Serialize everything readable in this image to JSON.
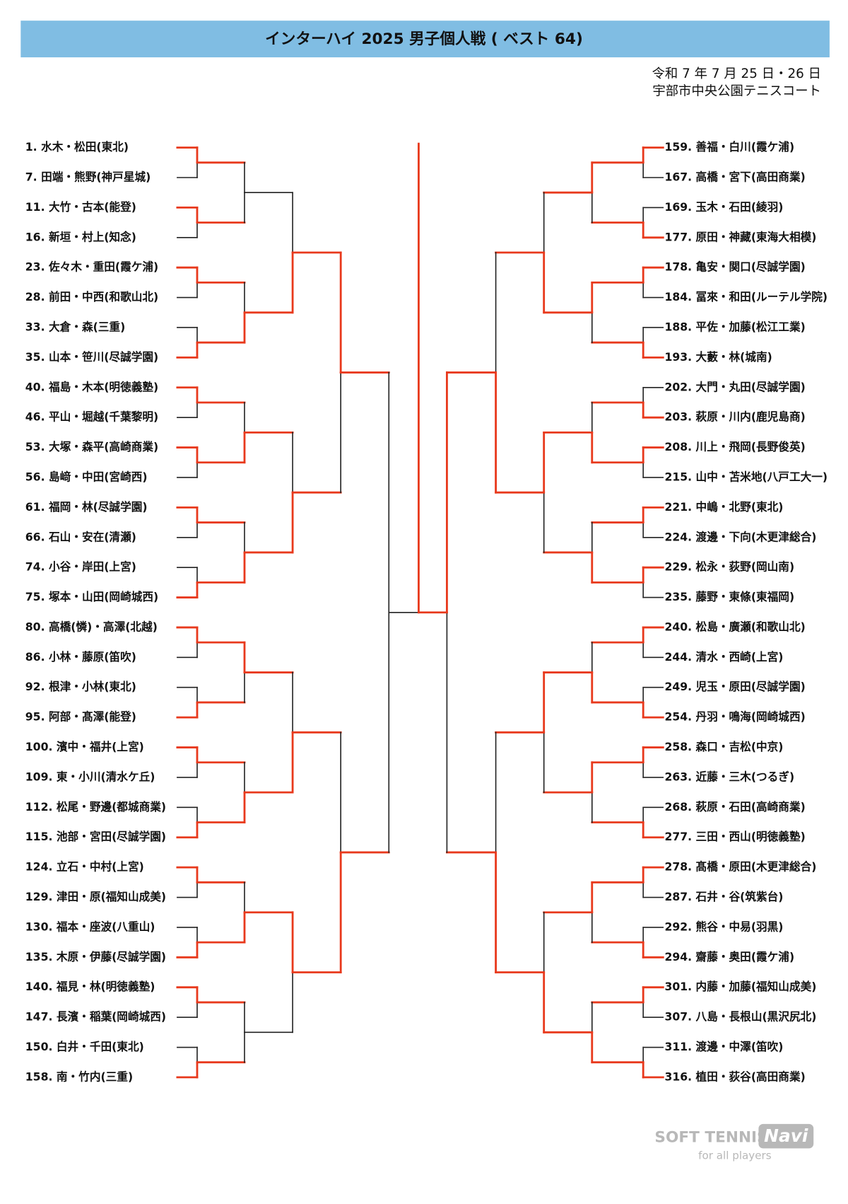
{
  "header": {
    "title": "インターハイ 2025 男子個人戦 ( ベスト 64)",
    "date": "令和 7 年 7 月 25 日・26 日",
    "venue": "宇部市中央公園テニスコート"
  },
  "left": [
    "1. 水木・松田(東北)",
    "7. 田端・熊野(神戸星城)",
    "11. 大竹・古本(能登)",
    "16. 新垣・村上(知念)",
    "23. 佐々木・重田(霞ケ浦)",
    "28. 前田・中西(和歌山北)",
    "33. 大倉・森(三重)",
    "35. 山本・笹川(尽誠学園)",
    "40. 福島・木本(明徳義塾)",
    "46. 平山・堀越(千葉黎明)",
    "53. 大塚・森平(高崎商業)",
    "56. 島﨑・中田(宮崎西)",
    "61. 福岡・林(尽誠学園)",
    "66. 石山・安在(清瀬)",
    "74. 小谷・岸田(上宮)",
    "75. 塚本・山田(岡崎城西)",
    "80. 高橋(憐)・高澤(北越)",
    "86. 小林・藤原(笛吹)",
    "92. 根津・小林(東北)",
    "95. 阿部・髙澤(能登)",
    "100. 濱中・福井(上宮)",
    "109. 東・小川(清水ケ丘)",
    "112. 松尾・野邊(都城商業)",
    "115. 池部・宮田(尽誠学園)",
    "124. 立石・中村(上宮)",
    "129. 津田・原(福知山成美)",
    "130. 福本・座波(八重山)",
    "135. 木原・伊藤(尽誠学園)",
    "140. 福見・林(明徳義塾)",
    "147. 長濱・稲葉(岡崎城西)",
    "150. 白井・千田(東北)",
    "158. 南・竹内(三重)"
  ],
  "right": [
    "159. 善福・白川(霞ケ浦)",
    "167. 高橋・宮下(高田商業)",
    "169. 玉木・石田(綾羽)",
    "177. 原田・神藏(東海大相模)",
    "178. 亀安・関口(尽誠学園)",
    "184. 冨來・和田(ルーテル学院)",
    "188. 平佐・加藤(松江工業)",
    "193. 大藪・林(城南)",
    "202. 大門・丸田(尽誠学園)",
    "203. 萩原・川内(鹿児島商)",
    "208. 川上・飛岡(長野俊英)",
    "215. 山中・苫米地(八戸工大一)",
    "221. 中嶋・北野(東北)",
    "224. 渡邊・下向(木更津総合)",
    "229. 松永・荻野(岡山南)",
    "235. 藤野・東條(東福岡)",
    "240. 松島・廣瀬(和歌山北)",
    "244. 清水・西崎(上宮)",
    "249. 児玉・原田(尽誠学園)",
    "254. 丹羽・鳴海(岡崎城西)",
    "258. 森口・吉松(中京)",
    "263. 近藤・三木(つるぎ)",
    "268. 萩原・石田(高崎商業)",
    "277. 三田・西山(明徳義塾)",
    "278. 髙橋・原田(木更津総合)",
    "287. 石井・谷(筑紫台)",
    "292. 熊谷・中易(羽黒)",
    "294. 齋藤・奥田(霞ケ浦)",
    "301. 内藤・加藤(福知山成美)",
    "307. 八島・長根山(黒沢尻北)",
    "311. 渡邊・中澤(笛吹)",
    "316. 植田・荻谷(高田商業)"
  ],
  "logo": {
    "brand": "SOFT TENNIS",
    "mark": "Navi",
    "tagline": "for all players"
  }
}
